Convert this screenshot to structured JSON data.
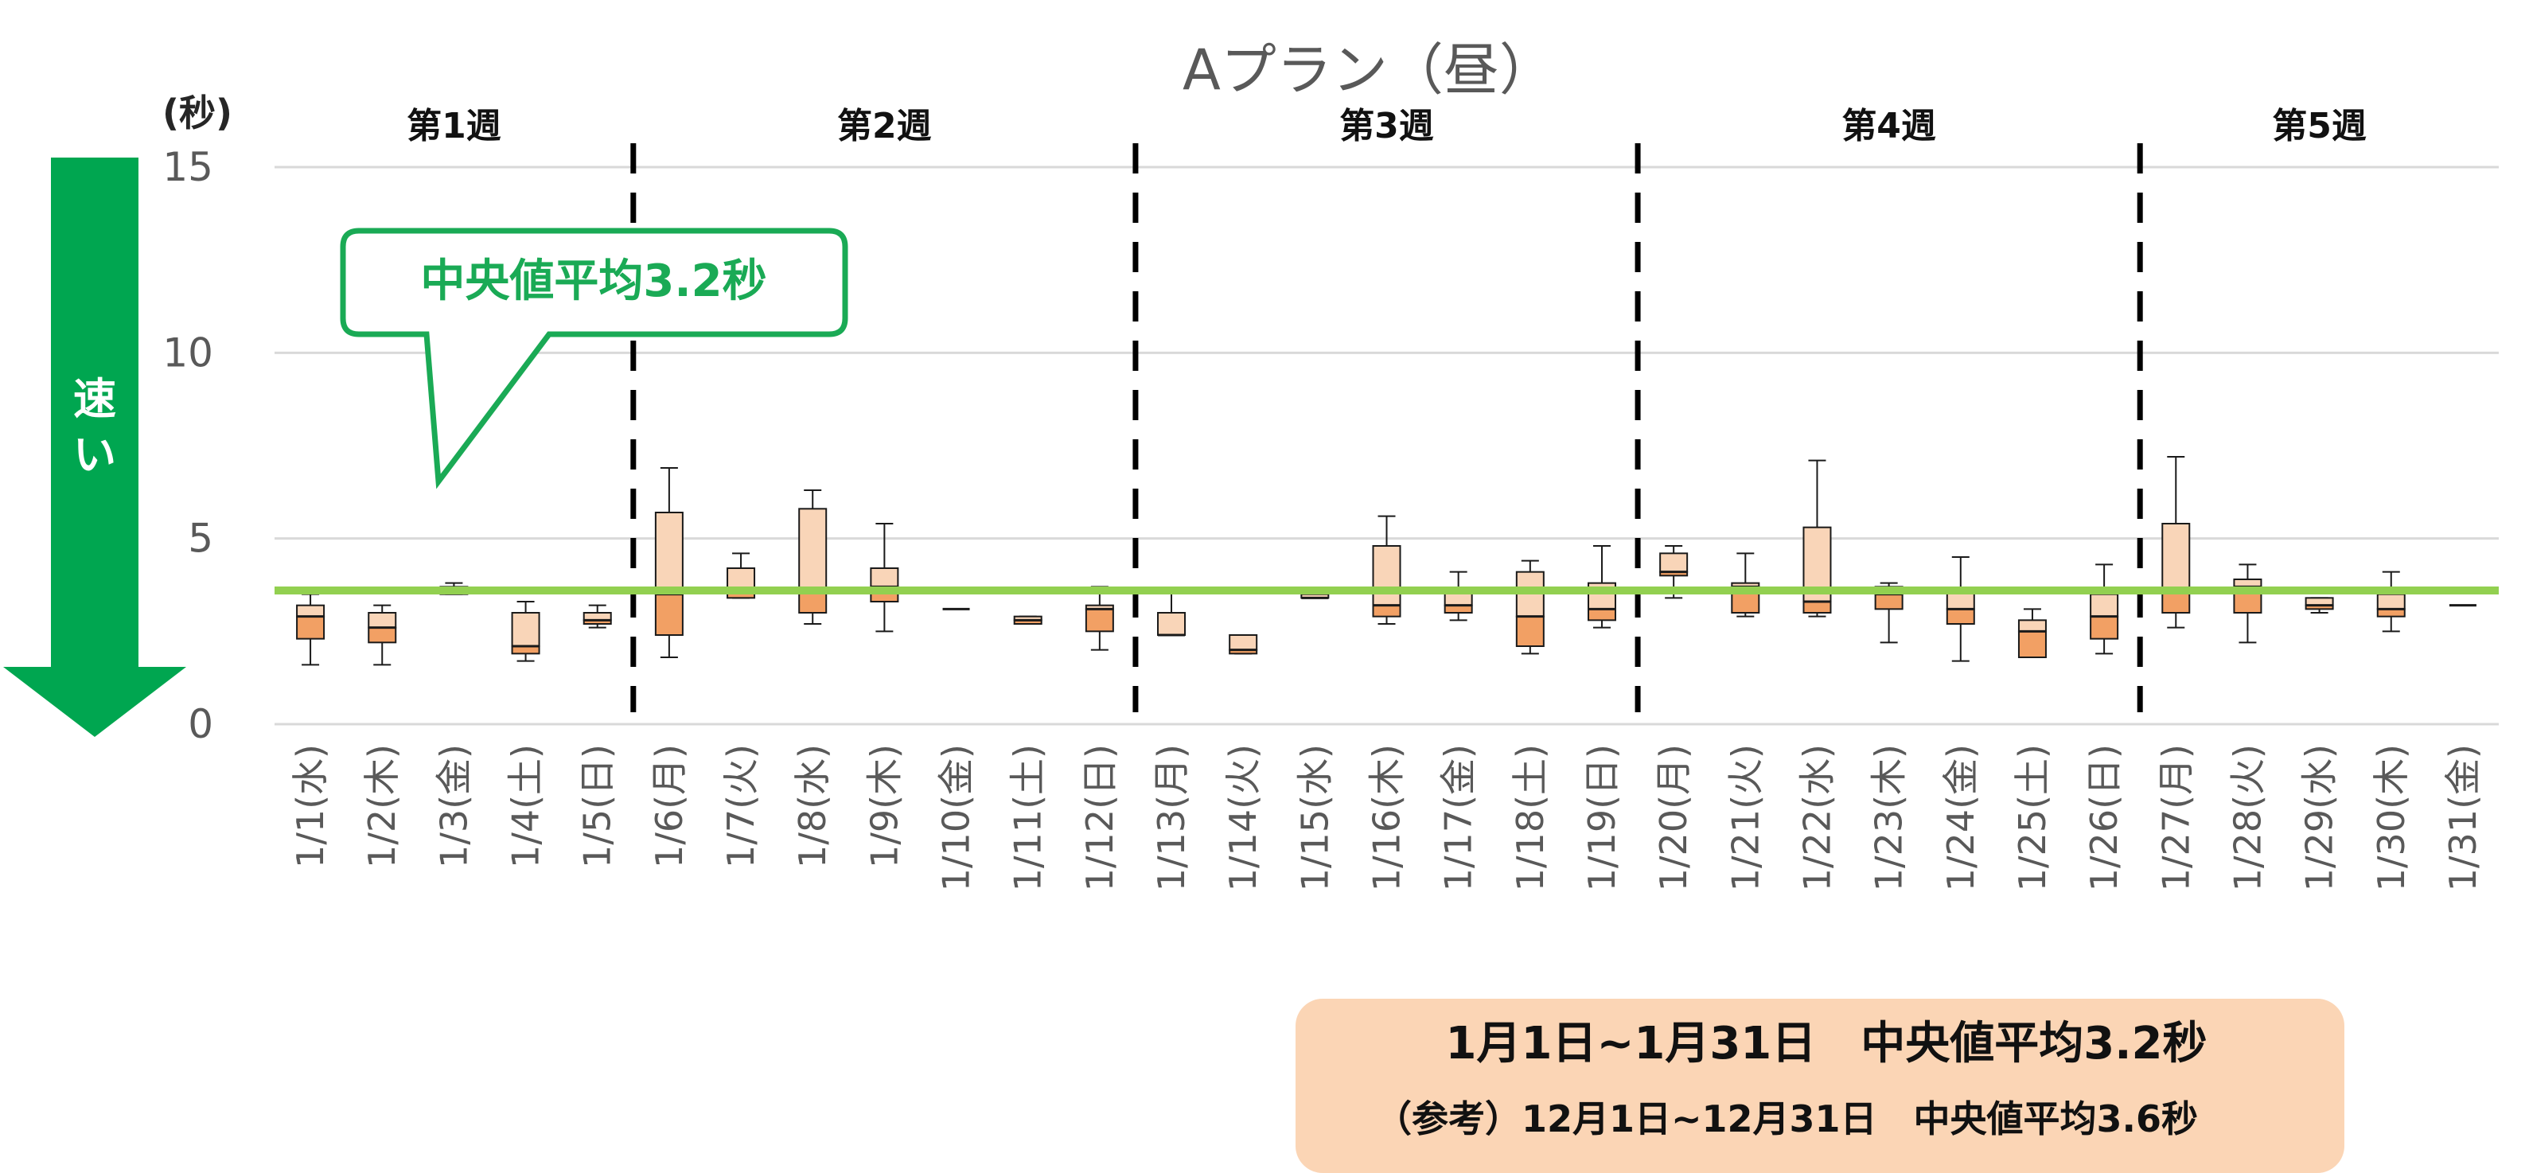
{
  "colors": {
    "box_low": "#f2a064",
    "box_high": "#f9d5b8",
    "box_stroke": "#1a1a1a",
    "avg_line": "#92d050",
    "arrow": "#00a650",
    "callout_border": "#1aaa55",
    "callout_text": "#1aaa55",
    "summary_bg": "#fbd5b5",
    "grid": "#d9d9d9",
    "axis_text": "#595959"
  },
  "chart_data": {
    "type": "box",
    "title": "Aプラン（昼）",
    "ylabel": "(秒)",
    "ylim": [
      0,
      15
    ],
    "yticks": [
      0,
      5,
      10,
      15
    ],
    "grid": true,
    "reference_line": {
      "value": 3.6
    },
    "categories": [
      "1/1(水)",
      "1/2(木)",
      "1/3(金)",
      "1/4(土)",
      "1/5(日)",
      "1/6(月)",
      "1/7(火)",
      "1/8(水)",
      "1/9(木)",
      "1/10(金)",
      "1/11(土)",
      "1/12(日)",
      "1/13(月)",
      "1/14(火)",
      "1/15(水)",
      "1/16(木)",
      "1/17(金)",
      "1/18(土)",
      "1/19(日)",
      "1/20(月)",
      "1/21(火)",
      "1/22(水)",
      "1/23(木)",
      "1/24(金)",
      "1/25(土)",
      "1/26(日)",
      "1/27(月)",
      "1/28(火)",
      "1/29(水)",
      "1/30(木)",
      "1/31(金)"
    ],
    "boxes": [
      {
        "min": 1.6,
        "q1": 2.3,
        "median": 2.9,
        "q3": 3.2,
        "max": 3.5
      },
      {
        "min": 1.6,
        "q1": 2.2,
        "median": 2.6,
        "q3": 3.0,
        "max": 3.2
      },
      {
        "min": 3.5,
        "q1": 3.5,
        "median": 3.6,
        "q3": 3.7,
        "max": 3.8
      },
      {
        "min": 1.7,
        "q1": 1.9,
        "median": 2.1,
        "q3": 3.0,
        "max": 3.3
      },
      {
        "min": 2.6,
        "q1": 2.7,
        "median": 2.8,
        "q3": 3.0,
        "max": 3.2
      },
      {
        "min": 1.8,
        "q1": 2.4,
        "median": 3.5,
        "q3": 5.7,
        "max": 6.9
      },
      {
        "min": 3.4,
        "q1": 3.4,
        "median": 3.6,
        "q3": 4.2,
        "max": 4.6
      },
      {
        "min": 2.7,
        "q1": 3.0,
        "median": 3.6,
        "q3": 5.8,
        "max": 6.3
      },
      {
        "min": 2.5,
        "q1": 3.3,
        "median": 3.7,
        "q3": 4.2,
        "max": 5.4
      },
      {
        "min": 3.1,
        "q1": 3.1,
        "median": 3.1,
        "q3": 3.1,
        "max": 3.1
      },
      {
        "min": 2.7,
        "q1": 2.7,
        "median": 2.8,
        "q3": 2.9,
        "max": 2.9
      },
      {
        "min": 2.0,
        "q1": 2.5,
        "median": 3.1,
        "q3": 3.2,
        "max": 3.7
      },
      {
        "min": 2.4,
        "q1": 2.4,
        "median": 2.4,
        "q3": 3.0,
        "max": 3.6
      },
      {
        "min": 1.9,
        "q1": 1.9,
        "median": 2.0,
        "q3": 2.4,
        "max": 2.4
      },
      {
        "min": 3.4,
        "q1": 3.4,
        "median": 3.4,
        "q3": 3.5,
        "max": 3.5
      },
      {
        "min": 2.7,
        "q1": 2.9,
        "median": 3.2,
        "q3": 4.8,
        "max": 5.6
      },
      {
        "min": 2.8,
        "q1": 3.0,
        "median": 3.2,
        "q3": 3.6,
        "max": 4.1
      },
      {
        "min": 1.9,
        "q1": 2.1,
        "median": 2.9,
        "q3": 4.1,
        "max": 4.4
      },
      {
        "min": 2.6,
        "q1": 2.8,
        "median": 3.1,
        "q3": 3.8,
        "max": 4.8
      },
      {
        "min": 3.4,
        "q1": 4.0,
        "median": 4.1,
        "q3": 4.6,
        "max": 4.8
      },
      {
        "min": 2.9,
        "q1": 3.0,
        "median": 3.7,
        "q3": 3.8,
        "max": 4.6
      },
      {
        "min": 2.9,
        "q1": 3.0,
        "median": 3.3,
        "q3": 5.3,
        "max": 7.1
      },
      {
        "min": 2.2,
        "q1": 3.1,
        "median": 3.5,
        "q3": 3.7,
        "max": 3.8
      },
      {
        "min": 1.7,
        "q1": 2.7,
        "median": 3.1,
        "q3": 3.6,
        "max": 4.5
      },
      {
        "min": 1.8,
        "q1": 1.8,
        "median": 2.5,
        "q3": 2.8,
        "max": 3.1
      },
      {
        "min": 1.9,
        "q1": 2.3,
        "median": 2.9,
        "q3": 3.5,
        "max": 4.3
      },
      {
        "min": 2.6,
        "q1": 3.0,
        "median": 3.6,
        "q3": 5.4,
        "max": 7.2
      },
      {
        "min": 2.2,
        "q1": 3.0,
        "median": 3.7,
        "q3": 3.9,
        "max": 4.3
      },
      {
        "min": 3.0,
        "q1": 3.1,
        "median": 3.2,
        "q3": 3.4,
        "max": 3.4
      },
      {
        "min": 2.5,
        "q1": 2.9,
        "median": 3.1,
        "q3": 3.5,
        "max": 4.1
      },
      {
        "min": 3.2,
        "q1": 3.2,
        "median": 3.2,
        "q3": 3.2,
        "max": 3.2
      }
    ],
    "weeks": [
      {
        "label": "第1週",
        "start": 0,
        "end": 4
      },
      {
        "label": "第2週",
        "start": 5,
        "end": 11
      },
      {
        "label": "第3週",
        "start": 12,
        "end": 18
      },
      {
        "label": "第4週",
        "start": 19,
        "end": 25
      },
      {
        "label": "第5週",
        "start": 26,
        "end": 30
      }
    ]
  },
  "annotations": {
    "arrow_label": "速い",
    "callout": "中央値平均3.2秒",
    "summary_main": "1月1日~1月31日　中央値平均3.2秒",
    "summary_ref": "（参考）12月1日~12月31日　中央値平均3.6秒"
  }
}
